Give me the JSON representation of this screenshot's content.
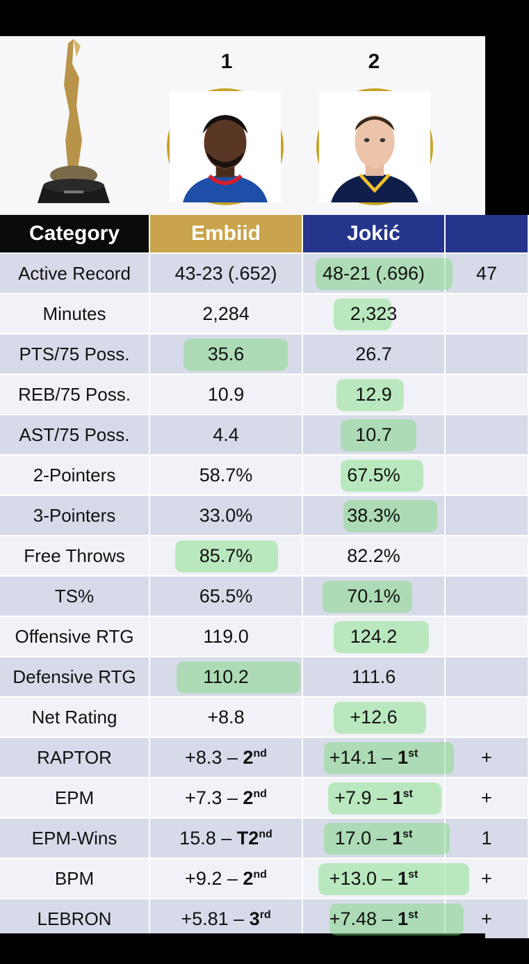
{
  "header": {
    "ranks": [
      "1",
      "2"
    ]
  },
  "table": {
    "headers": {
      "category": "Category",
      "player1": "Embiid",
      "player2": "Jokić",
      "player3": ""
    },
    "rows": [
      {
        "label": "Active Record",
        "p1": "43-23 (.652)",
        "p2": "48-21 (.696)",
        "p3": "47"
      },
      {
        "label": "Minutes",
        "p1": "2,284",
        "p2": "2,323",
        "p3": ""
      },
      {
        "label": "PTS/75 Poss.",
        "p1": "35.6",
        "p2": "26.7",
        "p3": ""
      },
      {
        "label": "REB/75 Poss.",
        "p1": "10.9",
        "p2": "12.9",
        "p3": ""
      },
      {
        "label": "AST/75 Poss.",
        "p1": "4.4",
        "p2": "10.7",
        "p3": ""
      },
      {
        "label": "2-Pointers",
        "p1": "58.7%",
        "p2": "67.5%",
        "p3": ""
      },
      {
        "label": "3-Pointers",
        "p1": "33.0%",
        "p2": "38.3%",
        "p3": ""
      },
      {
        "label": "Free Throws",
        "p1": "85.7%",
        "p2": "82.2%",
        "p3": ""
      },
      {
        "label": "TS%",
        "p1": "65.5%",
        "p2": "70.1%",
        "p3": ""
      },
      {
        "label": "Offensive RTG",
        "p1": "119.0",
        "p2": "124.2",
        "p3": ""
      },
      {
        "label": "Defensive RTG",
        "p1": "110.2",
        "p2": "111.6",
        "p3": ""
      },
      {
        "label": "Net Rating",
        "p1": "+8.8",
        "p2": "+12.6",
        "p3": ""
      },
      {
        "label": "RAPTOR",
        "p1": "+8.3 – ",
        "p1b": "2",
        "p1s": "nd",
        "p2": "+14.1 – ",
        "p2b": "1",
        "p2s": "st",
        "p3": "+"
      },
      {
        "label": "EPM",
        "p1": "+7.3 – ",
        "p1b": "2",
        "p1s": "nd",
        "p2": "+7.9 – ",
        "p2b": "1",
        "p2s": "st",
        "p3": "+"
      },
      {
        "label": "EPM-Wins",
        "p1": "15.8 – ",
        "p1b": "T2",
        "p1s": "nd",
        "p2": "17.0 – ",
        "p2b": "1",
        "p2s": "st",
        "p3": "1"
      },
      {
        "label": "BPM",
        "p1": "+9.2 – ",
        "p1b": "2",
        "p1s": "nd",
        "p2": "+13.0 – ",
        "p2b": "1",
        "p2s": "st",
        "p3": "+"
      },
      {
        "label": "LEBRON",
        "p1": "+5.81 – ",
        "p1b": "3",
        "p1s": "rd",
        "p2": "+7.48 – ",
        "p2b": "1",
        "p2s": "st",
        "p3": "+"
      }
    ]
  },
  "colors": {
    "header_category": "#0b0b0b",
    "header_player1": "#c9a44c",
    "header_player2": "#26358c",
    "row_odd": "#d7dae8",
    "row_even": "#f1f2f7",
    "highlight": "#78dc78"
  },
  "icons": [
    "trophy-icon",
    "player1-portrait",
    "player2-portrait"
  ]
}
